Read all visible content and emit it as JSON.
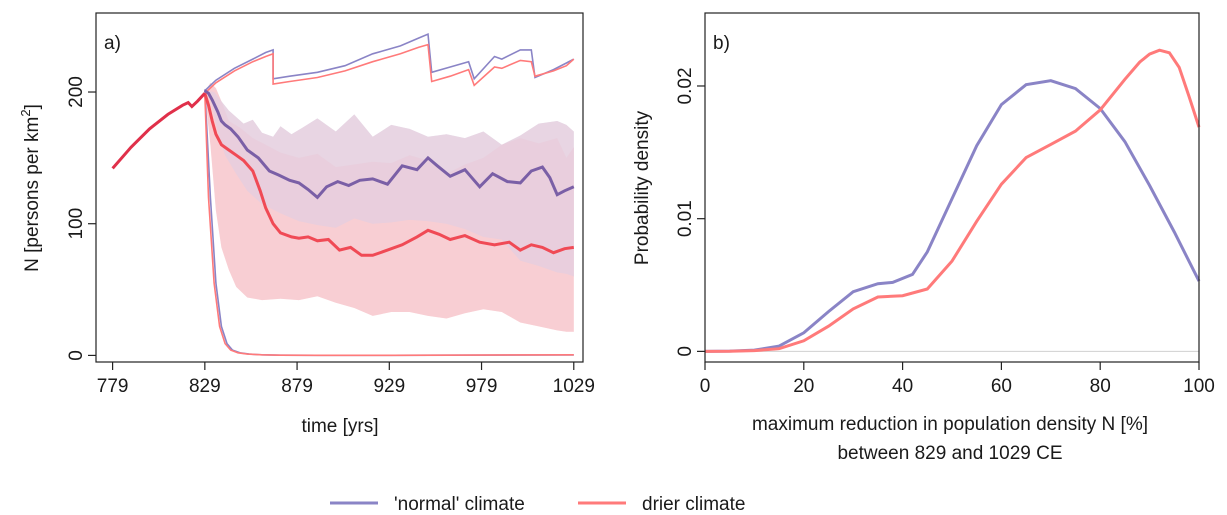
{
  "colors": {
    "normal": "#8a84c6",
    "normal_dark": "#7a5fa6",
    "drier": "#ff7a7a",
    "drier_dark": "#f04a55",
    "base": "#e0304a",
    "normal_band": "#d5d6ee",
    "drier_band": "#ffd4d4",
    "overlap_band": "#ecc4d2"
  },
  "legend": {
    "normal": "'normal' climate",
    "drier": "drier climate"
  },
  "chart_data": [
    {
      "panel": "a)",
      "type": "line",
      "xlabel": "time [yrs]",
      "ylabel": "N [persons per km",
      "ylabel_sup": "2",
      "ylabel_end": "]",
      "xlim": [
        770,
        1034
      ],
      "ylim": [
        -5,
        260
      ],
      "x_ticks": [
        779,
        829,
        879,
        929,
        979,
        1029
      ],
      "x_tick_labels": [
        "779",
        "829",
        "879",
        "929",
        "979",
        "1029"
      ],
      "y_ticks": [
        0,
        100,
        200
      ],
      "y_tick_labels": [
        "0",
        "100",
        "200"
      ],
      "baseline": {
        "x": [
          779,
          789,
          799,
          809,
          817,
          820,
          822,
          825,
          829
        ],
        "y": [
          142,
          158,
          172,
          183,
          190,
          192,
          189,
          193,
          199
        ]
      },
      "series": [
        {
          "key": "normal",
          "max": {
            "x": [
              829,
              835,
              845,
              855,
              862,
              866,
              866,
              875,
              890,
              905,
              920,
              935,
              945,
              950,
              952,
              962,
              972,
              975,
              986,
              990,
              1000,
              1006,
              1008,
              1018,
              1025,
              1029
            ],
            "y": [
              201,
              209,
              218,
              225,
              230,
              232,
              210,
              212,
              215,
              220,
              229,
              235,
              241,
              244,
              215,
              219,
              223,
              210,
              227,
              225,
              232,
              232,
              211,
              217,
              222,
              225
            ]
          },
          "upper": {
            "x": [
              829,
              834,
              838,
              842,
              850,
              855,
              860,
              866,
              870,
              876,
              882,
              890,
              900,
              910,
              920,
              930,
              940,
              950,
              960,
              970,
              980,
              990,
              1000,
              1010,
              1020,
              1025,
              1029
            ],
            "y": [
              201,
              200,
              193,
              186,
              176,
              179,
              169,
              166,
              174,
              168,
              173,
              180,
              170,
              183,
              166,
              175,
              172,
              166,
              168,
              165,
              170,
              160,
              167,
              176,
              178,
              175,
              170
            ]
          },
          "median": {
            "x": [
              829,
              831,
              833,
              836,
              838,
              840,
              843,
              847,
              852,
              858,
              864,
              869,
              875,
              880,
              885,
              890,
              895,
              901,
              907,
              913,
              920,
              928,
              936,
              944,
              950,
              955,
              962,
              970,
              978,
              985,
              993,
              1000,
              1006,
              1012,
              1016,
              1020,
              1024,
              1029
            ],
            "y": [
              201,
              199,
              194,
              185,
              178,
              175,
              172,
              166,
              156,
              150,
              140,
              137,
              133,
              131,
              126,
              120,
              128,
              132,
              129,
              133,
              134,
              130,
              144,
              141,
              150,
              144,
              136,
              141,
              128,
              138,
              132,
              131,
              140,
              143,
              135,
              122,
              125,
              128
            ]
          },
          "lower": {
            "x": [
              829,
              832,
              836,
              840,
              846,
              852,
              860,
              870,
              880,
              890,
              900,
              910,
              920,
              930,
              940,
              950,
              960,
              970,
              980,
              990,
              1000,
              1010,
              1020,
              1025,
              1029
            ],
            "y": [
              201,
              195,
              170,
              152,
              138,
              125,
              115,
              108,
              102,
              99,
              97,
              104,
              100,
              101,
              103,
              102,
              100,
              96,
              90,
              88,
              72,
              68,
              63,
              62,
              60
            ]
          },
          "min": {
            "x": [
              829,
              832,
              835,
              838,
              841,
              844,
              848,
              853,
              860,
              870,
              890,
              930,
              1029
            ],
            "y": [
              202,
              120,
              55,
              22,
              9,
              4,
              2,
              1,
              0.5,
              0.2,
              0.1,
              0.1,
              0.3
            ]
          }
        },
        {
          "key": "drier",
          "max": {
            "x": [
              829,
              835,
              845,
              855,
              862,
              866,
              866,
              875,
              890,
              905,
              920,
              935,
              945,
              950,
              952,
              962,
              972,
              975,
              986,
              990,
              1000,
              1006,
              1008,
              1018,
              1025,
              1029
            ],
            "y": [
              199,
              207,
              216,
              223,
              227,
              229,
              206,
              208,
              211,
              216,
              223,
              229,
              234,
              236,
              208,
              212,
              217,
              205,
              219,
              218,
              224,
              223,
              212,
              216,
              220,
              225
            ]
          },
          "upper": {
            "x": [
              829,
              832,
              835,
              838,
              842,
              848,
              855,
              862,
              870,
              880,
              890,
              900,
              910,
              920,
              930,
              940,
              950,
              960,
              970,
              980,
              990,
              1000,
              1010,
              1020,
              1025,
              1029
            ],
            "y": [
              200,
              207,
              203,
              193,
              178,
              173,
              165,
              160,
              154,
              150,
              153,
              143,
              145,
              147,
              146,
              152,
              148,
              138,
              145,
              150,
              160,
              165,
              161,
              165,
              150,
              158
            ]
          },
          "median": {
            "x": [
              829,
              831,
              833,
              835,
              838,
              842,
              846,
              850,
              855,
              859,
              862,
              866,
              870,
              876,
              880,
              885,
              890,
              896,
              902,
              908,
              914,
              920,
              928,
              936,
              944,
              950,
              956,
              962,
              970,
              978,
              986,
              994,
              1000,
              1006,
              1012,
              1018,
              1024,
              1029
            ],
            "y": [
              199,
              190,
              178,
              168,
              160,
              156,
              152,
              148,
              140,
              125,
              112,
              100,
              93,
              90,
              89,
              90,
              87,
              88,
              80,
              82,
              76,
              76,
              80,
              84,
              90,
              95,
              92,
              88,
              91,
              86,
              84,
              86,
              80,
              84,
              82,
              78,
              81,
              82
            ]
          },
          "lower": {
            "x": [
              829,
              832,
              835,
              838,
              842,
              846,
              852,
              860,
              870,
              880,
              890,
              900,
              910,
              920,
              930,
              940,
              950,
              960,
              970,
              980,
              990,
              1000,
              1010,
              1020,
              1025,
              1029
            ],
            "y": [
              199,
              160,
              110,
              82,
              65,
              52,
              44,
              42,
              43,
              42,
              45,
              40,
              36,
              30,
              33,
              33,
              30,
              28,
              32,
              35,
              33,
              25,
              22,
              19,
              18,
              18
            ]
          },
          "min": {
            "x": [
              829,
              831,
              834,
              837,
              840,
              843,
              847,
              852,
              860,
              870,
              890,
              930,
              1029
            ],
            "y": [
              199,
              120,
              55,
              22,
              9,
              4,
              2,
              1,
              0.5,
              0.2,
              0.1,
              0.1,
              0.5
            ]
          }
        }
      ]
    },
    {
      "panel": "b)",
      "type": "line",
      "xlabel": "maximum reduction in population density N [%]",
      "xlabel2": "between 829 and 1029 CE",
      "ylabel": "Probability density",
      "xlim": [
        0,
        100
      ],
      "ylim": [
        -0.0008,
        0.0255
      ],
      "x_ticks": [
        0,
        20,
        40,
        60,
        80,
        100
      ],
      "x_tick_labels": [
        "0",
        "20",
        "40",
        "60",
        "80",
        "100"
      ],
      "y_ticks": [
        0,
        0.01,
        0.02
      ],
      "y_tick_labels": [
        "0",
        "0.01",
        "0.02"
      ],
      "series": [
        {
          "key": "normal",
          "name": "'normal' climate",
          "x": [
            0,
            5,
            10,
            15,
            20,
            25,
            30,
            35,
            38,
            42,
            45,
            50,
            55,
            60,
            65,
            70,
            75,
            80,
            85,
            90,
            95,
            100
          ],
          "y": [
            0,
            2e-05,
            0.0001,
            0.0004,
            0.0014,
            0.003,
            0.0045,
            0.0051,
            0.0052,
            0.0058,
            0.0075,
            0.0115,
            0.0155,
            0.0186,
            0.0201,
            0.0204,
            0.0198,
            0.0183,
            0.0158,
            0.0125,
            0.009,
            0.0053
          ]
        },
        {
          "key": "drier",
          "name": "drier climate",
          "x": [
            0,
            5,
            10,
            15,
            20,
            25,
            30,
            35,
            40,
            45,
            50,
            55,
            60,
            65,
            70,
            75,
            80,
            85,
            88,
            90,
            92,
            94,
            96,
            98,
            100
          ],
          "y": [
            0,
            1e-05,
            6e-05,
            0.0002,
            0.0008,
            0.0019,
            0.0032,
            0.0041,
            0.0042,
            0.0047,
            0.0068,
            0.0098,
            0.0126,
            0.0146,
            0.0156,
            0.0166,
            0.0182,
            0.0205,
            0.0218,
            0.0224,
            0.0227,
            0.0225,
            0.0214,
            0.0192,
            0.0169
          ]
        }
      ]
    }
  ]
}
